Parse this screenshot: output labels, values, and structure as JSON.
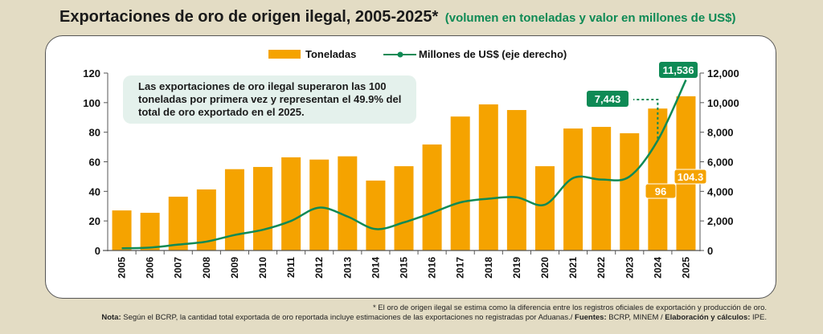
{
  "title": {
    "main": "Exportaciones de oro de origen ilegal, 2005-2025*",
    "subtitle": "(volumen en toneladas y valor en millones de US$)"
  },
  "callout": "Las exportaciones de oro ilegal superaron las 100 toneladas por primera vez y representan el 49.9% del total de oro exportado en el 2025.",
  "footnote": "* El oro de origen ilegal se estima como la diferencia entre los registros oficiales de exportación y producción de oro.",
  "note": {
    "label": "Nota:",
    "text": " Según el BCRP, la cantidad total exportada de oro reportada incluye estimaciones de las exportaciones no registradas por Aduanas./ ",
    "sources_label": "Fuentes:",
    "sources": " BCRP, MINEM / ",
    "elab_label": "Elaboración y cálculos:",
    "elab": " IPE."
  },
  "colors": {
    "bar": "#f5a300",
    "line": "#0e8a55",
    "background": "#e3dcc4",
    "callout": "#e4f1ec"
  },
  "chart_data": {
    "type": "bar+line",
    "title": "Exportaciones de oro de origen ilegal, 2005-2025*",
    "categories": [
      "2005",
      "2006",
      "2007",
      "2008",
      "2009",
      "2010",
      "2011",
      "2012",
      "2013",
      "2014",
      "2015",
      "2016",
      "2017",
      "2018",
      "2019",
      "2020",
      "2021",
      "2022",
      "2023",
      "2024",
      "2025"
    ],
    "series": [
      {
        "name": "Toneladas",
        "type": "bar",
        "axis": "left",
        "values": [
          27.1,
          25.5,
          36.4,
          41.3,
          55.0,
          56.5,
          63.0,
          61.5,
          63.7,
          47.3,
          57.0,
          71.7,
          90.6,
          98.8,
          95.0,
          57.0,
          82.5,
          83.6,
          79.3,
          96.0,
          104.3
        ]
      },
      {
        "name": "Millones de US$ (eje derecho)",
        "type": "line",
        "axis": "right",
        "values": [
          150,
          200,
          400,
          600,
          1050,
          1400,
          2000,
          2900,
          2300,
          1450,
          1900,
          2550,
          3250,
          3500,
          3600,
          3100,
          4900,
          4800,
          5000,
          7443,
          11536
        ]
      }
    ],
    "left_axis": {
      "ylim": [
        0,
        120
      ],
      "ticks": [
        "0",
        "20",
        "40",
        "60",
        "80",
        "100",
        "120"
      ]
    },
    "right_axis": {
      "ylim": [
        0,
        12000
      ],
      "ticks": [
        "0",
        "2,000",
        "4,000",
        "6,000",
        "8,000",
        "10,000",
        "12,000"
      ]
    },
    "data_labels": {
      "bars": [
        {
          "category": "2024",
          "text": "96"
        },
        {
          "category": "2025",
          "text": "104.3"
        }
      ],
      "line": [
        {
          "category": "2024",
          "text": "7,443"
        },
        {
          "category": "2025",
          "text": "11,536"
        }
      ]
    },
    "legend": {
      "position": "top-center",
      "items": [
        "Toneladas",
        "Millones de US$ (eje derecho)"
      ]
    },
    "grid": false
  }
}
